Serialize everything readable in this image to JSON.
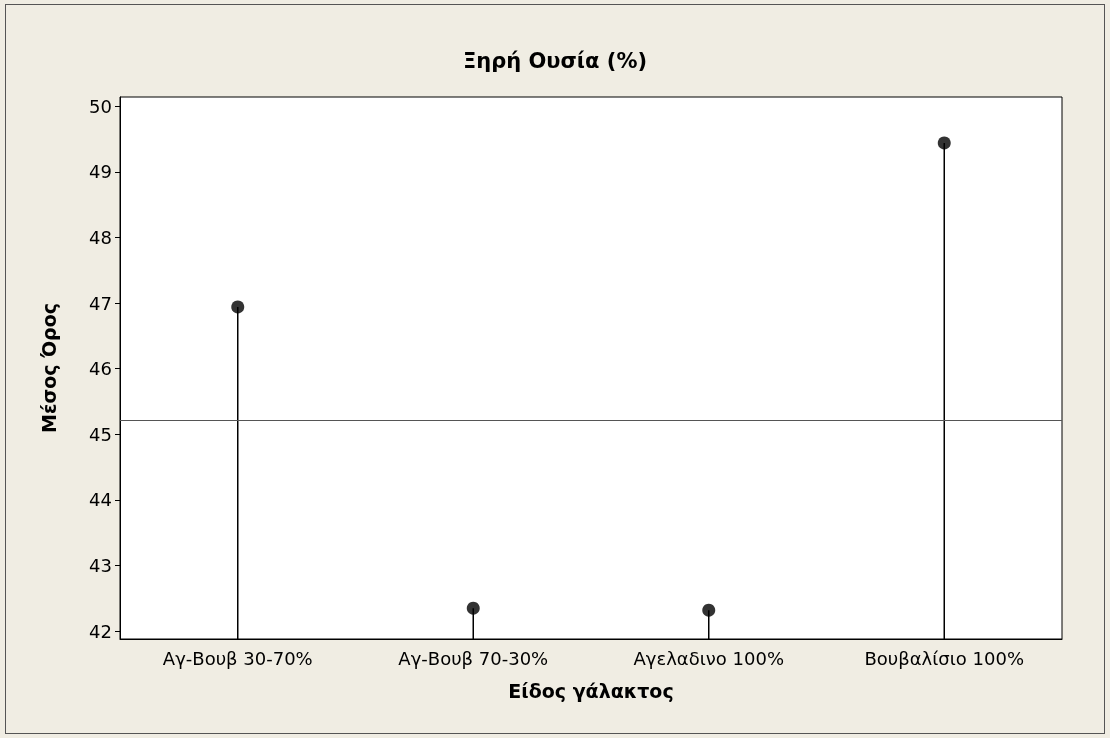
{
  "chart_data": {
    "type": "lollipop",
    "title": "Ξηρή Ουσία (%)",
    "xlabel": "Είδος γάλακτος",
    "ylabel": "Μέσος Όρος",
    "categories": [
      "Αγ-Βουβ 30-70%",
      "Αγ-Βουβ 70-30%",
      "Αγελαδινο 100%",
      "Βουβαλίσιο 100%"
    ],
    "values": [
      46.94,
      42.35,
      42.32,
      49.44
    ],
    "color": "#000000",
    "marker": "circle",
    "ylim": [
      41.88,
      50.14
    ],
    "yticks": [
      42,
      43,
      44,
      45,
      46,
      47,
      48,
      49,
      50
    ],
    "grid": false,
    "ref_lines": [
      {
        "axis": "y",
        "value": 45.22,
        "label": null,
        "color": "#555555",
        "line_style": "solid"
      }
    ]
  }
}
